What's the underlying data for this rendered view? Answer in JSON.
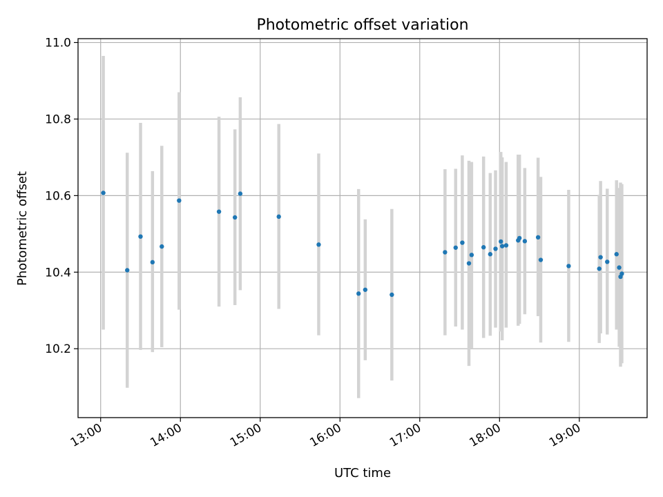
{
  "chart_data": {
    "type": "scatter",
    "title": "Photometric offset variation",
    "xlabel": "UTC time",
    "ylabel": "Photometric offset",
    "grid": true,
    "legend": "none",
    "xlim": [
      "12:43",
      "19:51"
    ],
    "ylim": [
      10.02,
      11.01
    ],
    "xticks": [
      "13:00",
      "14:00",
      "15:00",
      "16:00",
      "17:00",
      "18:00",
      "19:00"
    ],
    "yticks": [
      10.2,
      10.4,
      10.6,
      10.8,
      11.0
    ],
    "colors": {
      "point": "#1f77b4",
      "errorbar": "#d3d3d3"
    },
    "series": [
      {
        "points": [
          {
            "x": "13:02",
            "y": 10.607,
            "low": 10.25,
            "high": 10.965
          },
          {
            "x": "13:20",
            "y": 10.405,
            "low": 10.098,
            "high": 10.712
          },
          {
            "x": "13:30",
            "y": 10.493,
            "low": 10.197,
            "high": 10.79
          },
          {
            "x": "13:39",
            "y": 10.426,
            "low": 10.191,
            "high": 10.664
          },
          {
            "x": "13:46",
            "y": 10.467,
            "low": 10.204,
            "high": 10.73
          },
          {
            "x": "13:59",
            "y": 10.587,
            "low": 10.302,
            "high": 10.87
          },
          {
            "x": "14:29",
            "y": 10.558,
            "low": 10.31,
            "high": 10.806
          },
          {
            "x": "14:41",
            "y": 10.543,
            "low": 10.314,
            "high": 10.773
          },
          {
            "x": "14:45",
            "y": 10.605,
            "low": 10.353,
            "high": 10.857
          },
          {
            "x": "15:14",
            "y": 10.545,
            "low": 10.304,
            "high": 10.787
          },
          {
            "x": "15:44",
            "y": 10.472,
            "low": 10.235,
            "high": 10.71
          },
          {
            "x": "16:14",
            "y": 10.344,
            "low": 10.071,
            "high": 10.617
          },
          {
            "x": "16:19",
            "y": 10.354,
            "low": 10.17,
            "high": 10.538
          },
          {
            "x": "16:39",
            "y": 10.341,
            "low": 10.117,
            "high": 10.565
          },
          {
            "x": "17:19",
            "y": 10.452,
            "low": 10.235,
            "high": 10.669
          },
          {
            "x": "17:27",
            "y": 10.464,
            "low": 10.258,
            "high": 10.67
          },
          {
            "x": "17:32",
            "y": 10.477,
            "low": 10.25,
            "high": 10.705
          },
          {
            "x": "17:37",
            "y": 10.423,
            "low": 10.155,
            "high": 10.691
          },
          {
            "x": "17:39",
            "y": 10.445,
            "low": 10.2,
            "high": 10.688
          },
          {
            "x": "17:48",
            "y": 10.465,
            "low": 10.228,
            "high": 10.702
          },
          {
            "x": "17:53",
            "y": 10.447,
            "low": 10.234,
            "high": 10.659
          },
          {
            "x": "17:57",
            "y": 10.461,
            "low": 10.255,
            "high": 10.666
          },
          {
            "x": "18:01",
            "y": 10.48,
            "low": 10.245,
            "high": 10.714
          },
          {
            "x": "18:02",
            "y": 10.468,
            "low": 10.222,
            "high": 10.7
          },
          {
            "x": "18:05",
            "y": 10.47,
            "low": 10.255,
            "high": 10.688
          },
          {
            "x": "18:14",
            "y": 10.483,
            "low": 10.26,
            "high": 10.707
          },
          {
            "x": "18:15",
            "y": 10.489,
            "low": 10.265,
            "high": 10.707
          },
          {
            "x": "18:19",
            "y": 10.481,
            "low": 10.29,
            "high": 10.672
          },
          {
            "x": "18:29",
            "y": 10.491,
            "low": 10.285,
            "high": 10.699
          },
          {
            "x": "18:31",
            "y": 10.432,
            "low": 10.216,
            "high": 10.649
          },
          {
            "x": "18:52",
            "y": 10.416,
            "low": 10.218,
            "high": 10.615
          },
          {
            "x": "19:15",
            "y": 10.409,
            "low": 10.215,
            "high": 10.602
          },
          {
            "x": "19:16",
            "y": 10.439,
            "low": 10.24,
            "high": 10.638
          },
          {
            "x": "19:21",
            "y": 10.427,
            "low": 10.237,
            "high": 10.618
          },
          {
            "x": "19:28",
            "y": 10.447,
            "low": 10.25,
            "high": 10.64
          },
          {
            "x": "19:30",
            "y": 10.412,
            "low": 10.205,
            "high": 10.62
          },
          {
            "x": "19:31",
            "y": 10.388,
            "low": 10.153,
            "high": 10.634
          },
          {
            "x": "19:32",
            "y": 10.396,
            "low": 10.162,
            "high": 10.63
          }
        ]
      }
    ]
  }
}
